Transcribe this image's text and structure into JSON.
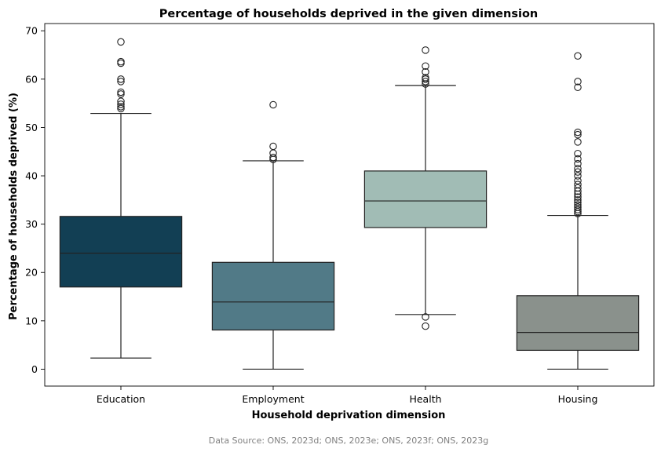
{
  "chart_data": {
    "type": "box",
    "title": "Percentage of households deprived in the given dimension",
    "xlabel": "Household deprivation dimension",
    "ylabel": "Percentage of households deprived (%)",
    "ylim": [
      -3.5,
      71.5
    ],
    "yticks": [
      0,
      10,
      20,
      30,
      40,
      50,
      60,
      70
    ],
    "grid": false,
    "categories": [
      "Education",
      "Employment",
      "Health",
      "Housing"
    ],
    "boxes": [
      {
        "label": "Education",
        "color": "#123f54",
        "whisker_low": 2.3,
        "q1": 17.0,
        "median": 24.0,
        "q3": 31.6,
        "whisker_high": 52.9,
        "outliers": [
          53.9,
          54.3,
          54.8,
          55.4,
          56.9,
          57.3,
          59.5,
          60.0,
          63.3,
          63.6,
          67.7
        ]
      },
      {
        "label": "Employment",
        "color": "#517a87",
        "whisker_low": 0.0,
        "q1": 8.1,
        "median": 13.9,
        "q3": 22.1,
        "whisker_high": 43.1,
        "outliers": [
          43.4,
          43.8,
          44.7,
          46.1,
          54.7
        ]
      },
      {
        "label": "Health",
        "color": "#a1bcb5",
        "whisker_low": 11.3,
        "q1": 29.3,
        "median": 34.8,
        "q3": 41.0,
        "whisker_high": 58.7,
        "outliers": [
          59.0,
          59.5,
          60.0,
          60.3,
          61.5,
          62.7,
          66.0,
          10.8,
          8.9
        ]
      },
      {
        "label": "Housing",
        "color": "#8a918c",
        "whisker_low": 0.0,
        "q1": 3.9,
        "median": 7.6,
        "q3": 15.2,
        "whisker_high": 31.8,
        "outliers": [
          32.2,
          32.6,
          33.0,
          33.5,
          34.0,
          34.5,
          35.0,
          35.6,
          36.2,
          36.8,
          37.5,
          38.2,
          39.0,
          40.0,
          40.8,
          41.5,
          42.5,
          43.5,
          44.6,
          47.0,
          48.5,
          49.0,
          58.3,
          59.5,
          64.8
        ]
      }
    ]
  },
  "source_note": "Data Source: ONS, 2023d; ONS, 2023e; ONS, 2023f; ONS, 2023g"
}
